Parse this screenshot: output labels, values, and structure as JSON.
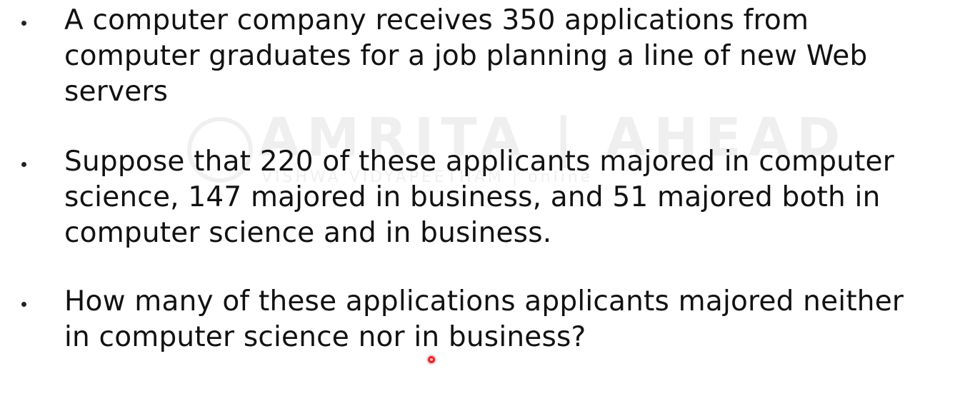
{
  "watermark": {
    "brand": "AMRITA | AHEAD",
    "subtitle": "VISHWA VIDYAPEETHAM | online"
  },
  "bullets": [
    {
      "lines": [
        "A computer company receives 350 applications from",
        "computer graduates for a job planning a line of new Web",
        "servers"
      ]
    },
    {
      "lines": [
        "Suppose that 220 of these applicants majored in computer",
        "science, 147 majored in business, and 51 majored both in",
        "computer science and in business."
      ]
    },
    {
      "lines": [
        "How many of these applications applicants majored neither",
        "in computer science nor in business?"
      ]
    }
  ],
  "colors": {
    "text": "#111111",
    "background": "#ffffff",
    "pointer": "#e2262c"
  }
}
